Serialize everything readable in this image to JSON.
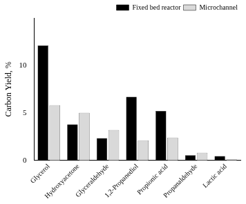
{
  "chart_data": {
    "type": "bar",
    "y_label": "Carbon Yield, %",
    "categories": [
      "Glycerol",
      "Hydroxyacetone",
      "Glyceraldehyde",
      "1,2-Propanediol",
      "Propionic acid",
      "Propanaldehyde",
      "Lactic acid"
    ],
    "series": [
      {
        "name": "Fixed bed reactor",
        "color": "#000000",
        "values": [
          12.1,
          3.8,
          2.35,
          6.7,
          5.2,
          0.55,
          0.45
        ]
      },
      {
        "name": "Microchannel",
        "color": "#d9d9d9",
        "values": [
          5.8,
          5.0,
          3.2,
          2.1,
          2.4,
          0.8,
          0.1
        ]
      }
    ],
    "ylim": [
      0,
      15
    ],
    "yticks": [
      0,
      5,
      10
    ],
    "grid": false,
    "legend": "top-right"
  }
}
